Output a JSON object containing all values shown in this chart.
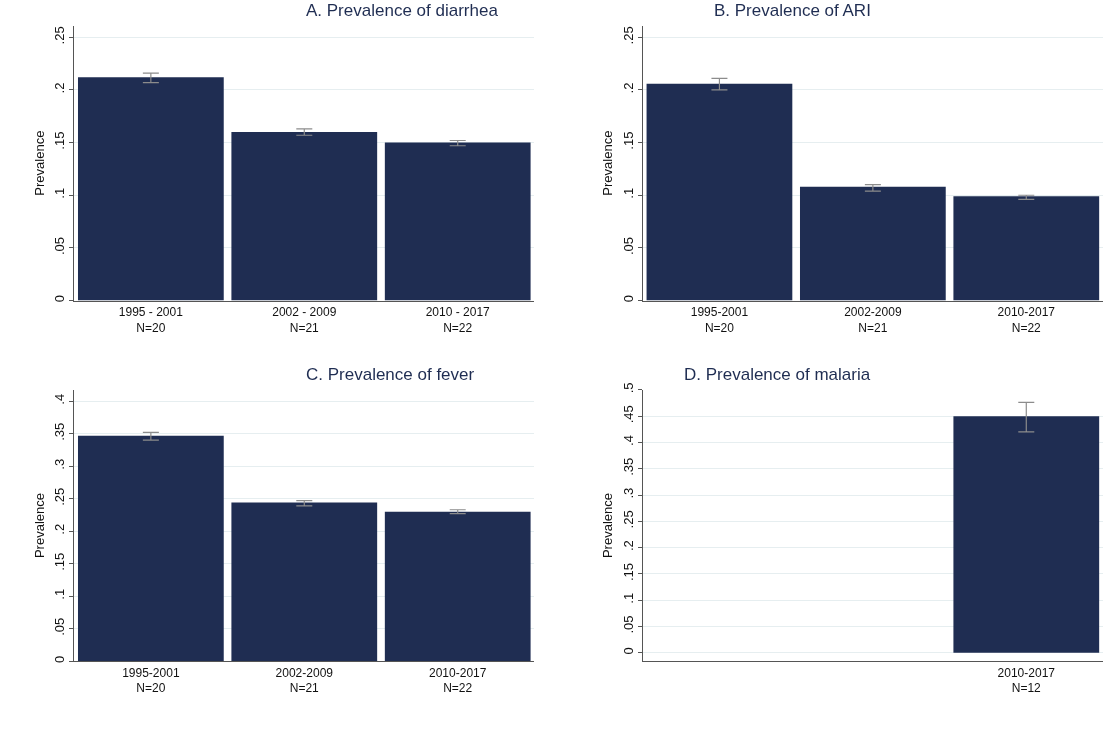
{
  "chart_data": [
    {
      "type": "bar",
      "title": "A. Prevalence of diarrhea",
      "ylabel": "Prevalence",
      "categories": [
        "1995 - 2001\nN=20",
        "2002 - 2009\nN=21",
        "2010 - 2017\nN=22"
      ],
      "values": [
        0.212,
        0.16,
        0.15
      ],
      "errors": [
        [
          0.207,
          0.216
        ],
        [
          0.157,
          0.163
        ],
        [
          0.147,
          0.152
        ]
      ],
      "color": "#1f2d52",
      "ylim": [
        0,
        0.261
      ],
      "yticks": [
        0,
        {
          "value": 0.05,
          "label": ".05"
        },
        {
          "value": 0.1,
          "label": ".1"
        },
        {
          "value": 0.15,
          "label": ".15"
        },
        {
          "value": 0.2,
          "label": ".2"
        },
        {
          "value": 0.25,
          "label": ".25"
        }
      ],
      "grid": "y"
    },
    {
      "type": "bar",
      "title": "B. Prevalence of ARI",
      "ylabel": "Prevalence",
      "categories": [
        "1995-2001\nN=20",
        "2002-2009\nN=21",
        "2010-2017\nN=22"
      ],
      "values": [
        0.206,
        0.108,
        0.099
      ],
      "errors": [
        [
          0.2,
          0.211
        ],
        [
          0.104,
          0.11
        ],
        [
          0.096,
          0.1
        ]
      ],
      "color": "#1f2d52",
      "ylim": [
        0,
        0.261
      ],
      "yticks": [
        0,
        {
          "value": 0.05,
          "label": ".05"
        },
        {
          "value": 0.1,
          "label": ".1"
        },
        {
          "value": 0.15,
          "label": ".15"
        },
        {
          "value": 0.2,
          "label": ".2"
        },
        {
          "value": 0.25,
          "label": ".25"
        }
      ],
      "grid": "y"
    },
    {
      "type": "bar",
      "title": "C. Prevalence of fever",
      "ylabel": "Prevalence",
      "categories": [
        "1995-2001\nN=20",
        "2002-2009\nN=21",
        "2010-2017\nN=22"
      ],
      "values": [
        0.347,
        0.244,
        0.23
      ],
      "errors": [
        [
          0.34,
          0.352
        ],
        [
          0.239,
          0.247
        ],
        [
          0.227,
          0.233
        ]
      ],
      "color": "#1f2d52",
      "ylim": [
        0,
        0.4175
      ],
      "yticks": [
        0,
        {
          "value": 0.05,
          "label": ".05"
        },
        {
          "value": 0.1,
          "label": ".1"
        },
        {
          "value": 0.15,
          "label": ".15"
        },
        {
          "value": 0.2,
          "label": ".2"
        },
        {
          "value": 0.25,
          "label": ".25"
        },
        {
          "value": 0.3,
          "label": ".3"
        },
        {
          "value": 0.35,
          "label": ".35"
        },
        {
          "value": 0.4,
          "label": ".4"
        }
      ],
      "grid": "y"
    },
    {
      "type": "bar",
      "title": "D. Prevalence of malaria",
      "ylabel": "Prevalence",
      "categories": [
        null,
        null,
        "2010-2017\nN=12"
      ],
      "values": [
        null,
        null,
        0.45
      ],
      "errors": [
        null,
        null,
        [
          0.42,
          0.476
        ]
      ],
      "color": "#1f2d52",
      "ylim": [
        -0.016,
        0.5
      ],
      "yticks": [
        0,
        {
          "value": 0.05,
          "label": ".05"
        },
        {
          "value": 0.1,
          "label": ".1"
        },
        {
          "value": 0.15,
          "label": ".15"
        },
        {
          "value": 0.2,
          "label": ".2"
        },
        {
          "value": 0.25,
          "label": ".25"
        },
        {
          "value": 0.3,
          "label": ".3"
        },
        {
          "value": 0.35,
          "label": ".35"
        },
        {
          "value": 0.4,
          "label": ".4"
        },
        {
          "value": 0.45,
          "label": ".45"
        },
        {
          "value": 0.5,
          "label": ".5"
        }
      ],
      "grid": "y"
    }
  ]
}
